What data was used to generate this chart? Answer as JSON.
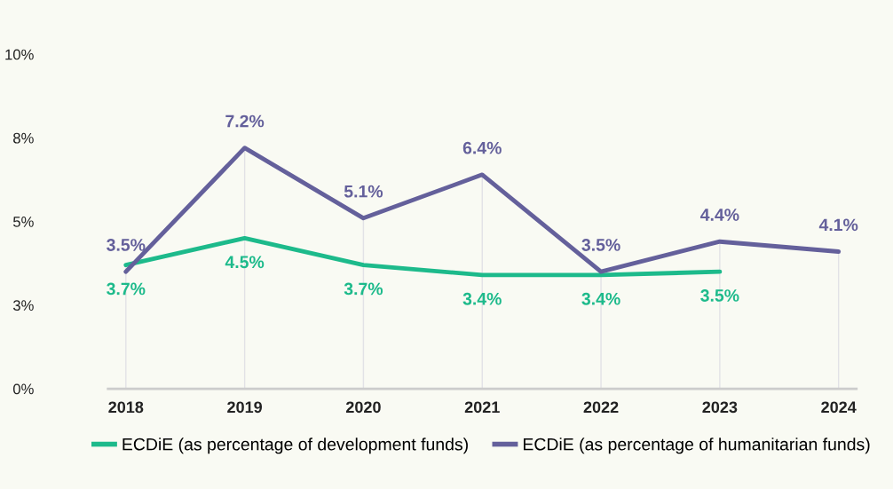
{
  "chart_data": {
    "type": "line",
    "categories": [
      "2018",
      "2019",
      "2020",
      "2021",
      "2022",
      "2023",
      "2024"
    ],
    "series": [
      {
        "name": "ECDiE (as percentage of development funds)",
        "color": "#1dba8b",
        "values": [
          3.7,
          4.5,
          3.7,
          3.4,
          3.4,
          3.5,
          null
        ],
        "value_labels": [
          "3.7%",
          "4.5%",
          "3.7%",
          "3.4%",
          "3.4%",
          "3.5%",
          null
        ]
      },
      {
        "name": "ECDiE (as percentage of humanitarian funds)",
        "color": "#64609b",
        "values": [
          3.5,
          7.2,
          5.1,
          6.4,
          3.5,
          4.4,
          4.1
        ],
        "value_labels": [
          "3.5%",
          "7.2%",
          "5.1%",
          "6.4%",
          "3.5%",
          "4.4%",
          "4.1%"
        ]
      }
    ],
    "ylim": [
      0,
      10
    ],
    "yticks": [
      {
        "value": 0,
        "label": "0%"
      },
      {
        "value": 2.5,
        "label": "3%"
      },
      {
        "value": 5,
        "label": "5%"
      },
      {
        "value": 7.5,
        "label": "8%"
      },
      {
        "value": 10,
        "label": "10%"
      }
    ],
    "grid": "x",
    "legend": "bottom",
    "marker": "none",
    "line_style": "solid"
  }
}
